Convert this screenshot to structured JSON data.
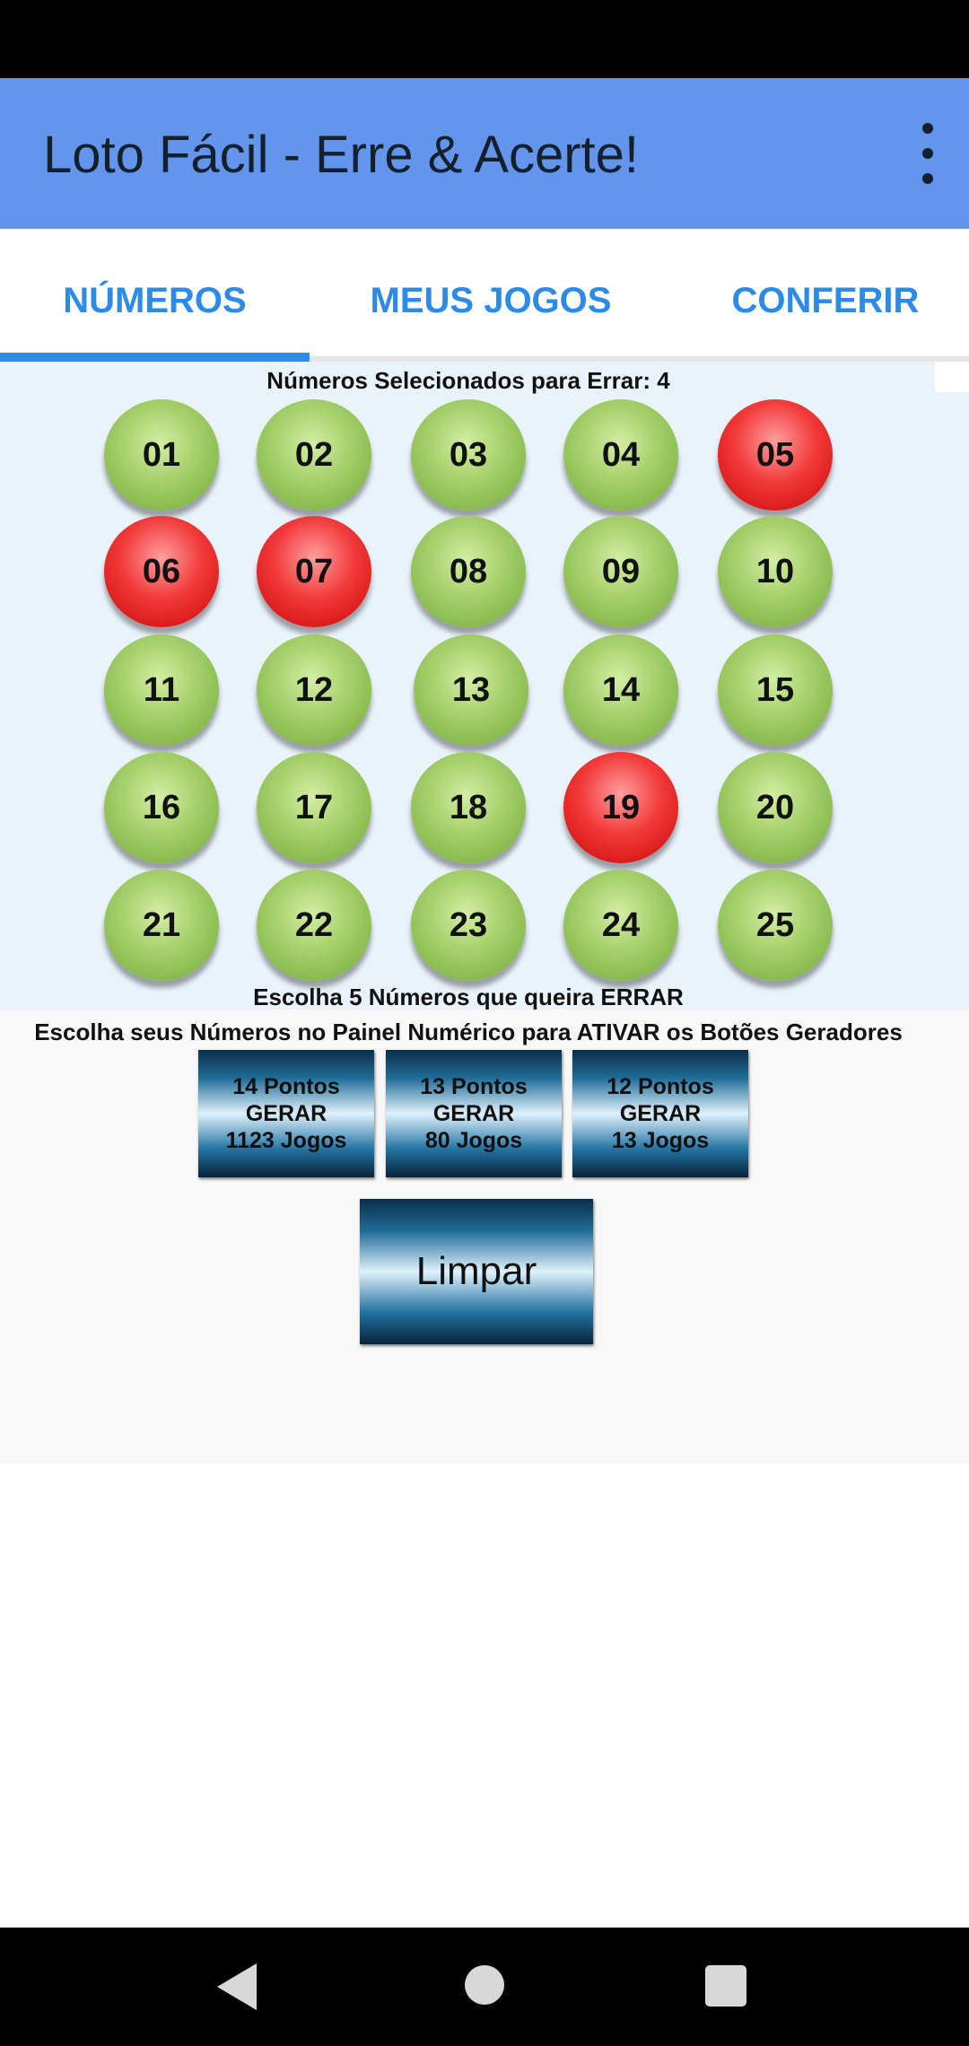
{
  "app_bar": {
    "title": "Loto Fácil - Erre & Acerte!",
    "menu_icon": "more-vert-icon"
  },
  "tabs": [
    {
      "label": "NÚMEROS",
      "selected": true
    },
    {
      "label": "MEUS JOGOS",
      "selected": false
    },
    {
      "label": "CONFERIR",
      "selected": false
    }
  ],
  "panel": {
    "selected_label": "Números Selecionados para Errar: 4",
    "hint_label": "Escolha 5 Números que queira ERRAR",
    "balls": [
      {
        "number": "01",
        "selected": false
      },
      {
        "number": "02",
        "selected": false
      },
      {
        "number": "03",
        "selected": false
      },
      {
        "number": "04",
        "selected": false
      },
      {
        "number": "05",
        "selected": true
      },
      {
        "number": "06",
        "selected": true
      },
      {
        "number": "07",
        "selected": true
      },
      {
        "number": "08",
        "selected": false
      },
      {
        "number": "09",
        "selected": false
      },
      {
        "number": "10",
        "selected": false
      },
      {
        "number": "11",
        "selected": false
      },
      {
        "number": "12",
        "selected": false
      },
      {
        "number": "13",
        "selected": false
      },
      {
        "number": "14",
        "selected": false
      },
      {
        "number": "15",
        "selected": false
      },
      {
        "number": "16",
        "selected": false
      },
      {
        "number": "17",
        "selected": false
      },
      {
        "number": "18",
        "selected": false
      },
      {
        "number": "19",
        "selected": true
      },
      {
        "number": "20",
        "selected": false
      },
      {
        "number": "21",
        "selected": false
      },
      {
        "number": "22",
        "selected": false
      },
      {
        "number": "23",
        "selected": false
      },
      {
        "number": "24",
        "selected": false
      },
      {
        "number": "25",
        "selected": false
      }
    ]
  },
  "generators": {
    "instruction": "Escolha seus Números no Painel Numérico para ATIVAR os Botões Geradores",
    "buttons": [
      {
        "line1": "14 Pontos",
        "line2": "GERAR",
        "line3": "1123 Jogos"
      },
      {
        "line1": "13 Pontos",
        "line2": "GERAR",
        "line3": "80 Jogos"
      },
      {
        "line1": "12 Pontos",
        "line2": "GERAR",
        "line3": "13 Jogos"
      }
    ],
    "clear_label": "Limpar"
  },
  "colors": {
    "app_bar": "#6495ed",
    "tab_accent": "#2b8be6",
    "ball_unselected": "#9ccb5e",
    "ball_selected": "#e82828",
    "panel_background": "#eaf3fb"
  },
  "nav": {
    "back_icon": "nav-back-icon",
    "home_icon": "nav-home-icon",
    "recents_icon": "nav-recents-icon"
  }
}
